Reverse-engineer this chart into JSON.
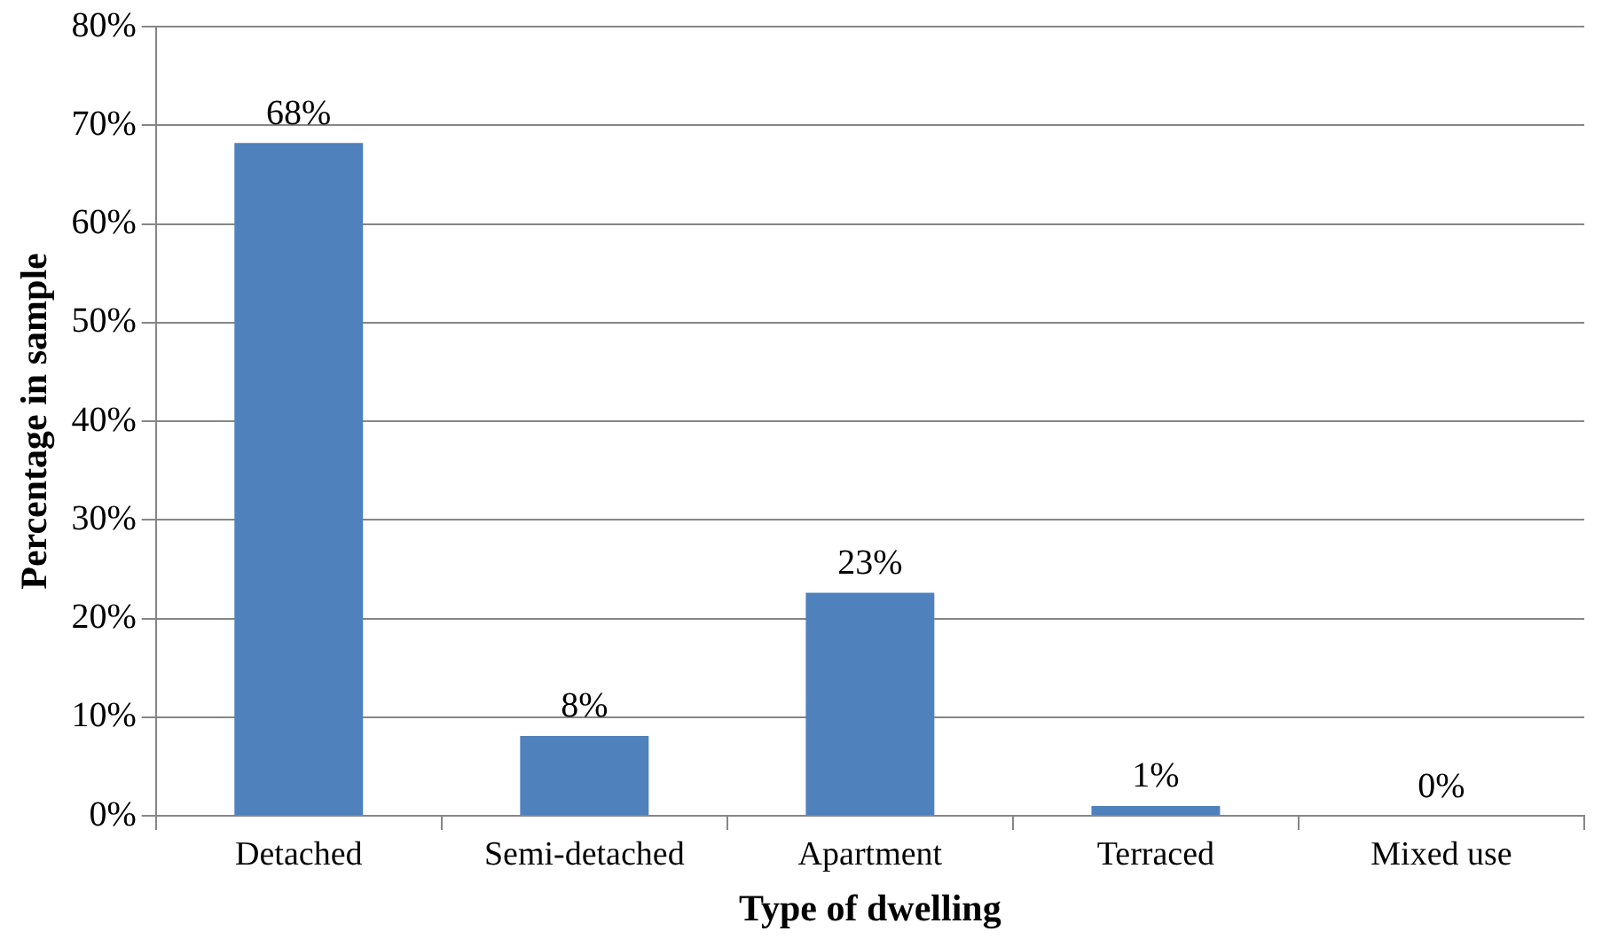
{
  "chart_data": {
    "type": "bar",
    "xlabel": "Type of dwelling",
    "ylabel": "Percentage in sample",
    "categories": [
      "Detached",
      "Semi-detached",
      "Apartment",
      "Terraced",
      "Mixed use"
    ],
    "values": [
      68.2,
      8.1,
      22.6,
      1,
      0
    ],
    "value_labels": [
      "68%",
      "8%",
      "23%",
      "1%",
      "0%"
    ],
    "color": "#4f81bd",
    "ylim": [
      0,
      80
    ],
    "yticks": [
      {
        "value": 0,
        "label": "0%"
      },
      {
        "value": 10,
        "label": "10%"
      },
      {
        "value": 20,
        "label": "20%"
      },
      {
        "value": 30,
        "label": "30%"
      },
      {
        "value": 40,
        "label": "40%"
      },
      {
        "value": 50,
        "label": "50%"
      },
      {
        "value": 60,
        "label": "60%"
      },
      {
        "value": 70,
        "label": "70%"
      },
      {
        "value": 80,
        "label": "80%"
      }
    ],
    "grid": "y",
    "legend": false
  }
}
